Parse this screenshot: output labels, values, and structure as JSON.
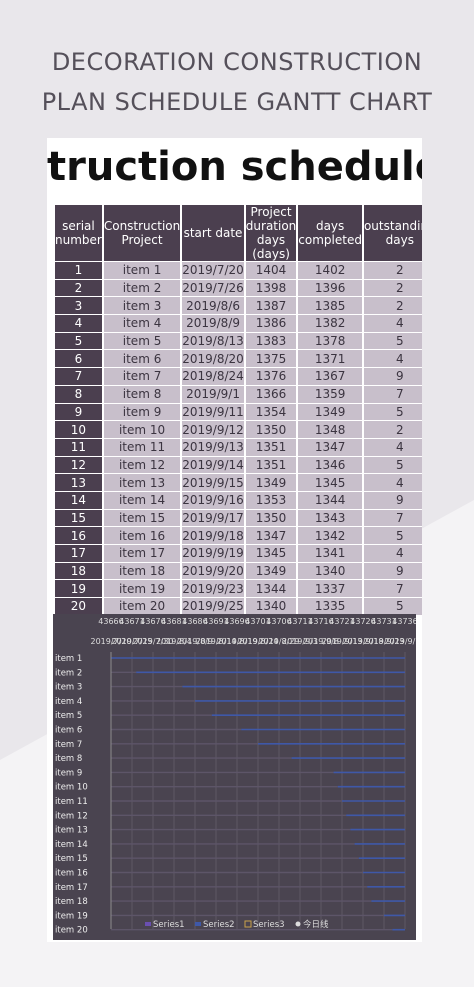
{
  "heading": {
    "lines": [
      "DECORATION CONSTRUCTION",
      "PLAN SCHEDULE GANTT CHART"
    ]
  },
  "banner": "truction schedule sche",
  "table": {
    "header": [
      "serial number",
      "Construction Project",
      "start date",
      "Project duration days (days)",
      "days completed",
      "outstanding days"
    ],
    "rows": [
      [
        "1",
        "item 1",
        "2019/7/20",
        "1404",
        "1402",
        "2"
      ],
      [
        "2",
        "item 2",
        "2019/7/26",
        "1398",
        "1396",
        "2"
      ],
      [
        "3",
        "item 3",
        "2019/8/6",
        "1387",
        "1385",
        "2"
      ],
      [
        "4",
        "item 4",
        "2019/8/9",
        "1386",
        "1382",
        "4"
      ],
      [
        "5",
        "item 5",
        "2019/8/13",
        "1383",
        "1378",
        "5"
      ],
      [
        "6",
        "item 6",
        "2019/8/20",
        "1375",
        "1371",
        "4"
      ],
      [
        "7",
        "item 7",
        "2019/8/24",
        "1376",
        "1367",
        "9"
      ],
      [
        "8",
        "item 8",
        "2019/9/1",
        "1366",
        "1359",
        "7"
      ],
      [
        "9",
        "item 9",
        "2019/9/11",
        "1354",
        "1349",
        "5"
      ],
      [
        "10",
        "item 10",
        "2019/9/12",
        "1350",
        "1348",
        "2"
      ],
      [
        "11",
        "item 11",
        "2019/9/13",
        "1351",
        "1347",
        "4"
      ],
      [
        "12",
        "item 12",
        "2019/9/14",
        "1351",
        "1346",
        "5"
      ],
      [
        "13",
        "item 13",
        "2019/9/15",
        "1349",
        "1345",
        "4"
      ],
      [
        "14",
        "item 14",
        "2019/9/16",
        "1353",
        "1344",
        "9"
      ],
      [
        "15",
        "item 15",
        "2019/9/17",
        "1350",
        "1343",
        "7"
      ],
      [
        "16",
        "item 16",
        "2019/9/18",
        "1347",
        "1342",
        "5"
      ],
      [
        "17",
        "item 17",
        "2019/9/19",
        "1345",
        "1341",
        "4"
      ],
      [
        "18",
        "item 18",
        "2019/9/20",
        "1349",
        "1340",
        "9"
      ],
      [
        "19",
        "item 19",
        "2019/9/23",
        "1344",
        "1337",
        "7"
      ],
      [
        "20",
        "item 20",
        "2019/9/25",
        "1340",
        "1335",
        "5"
      ]
    ]
  },
  "gantt": {
    "axis_top": [
      "43666",
      "43671",
      "43676",
      "43681",
      "43686",
      "43691",
      "43696",
      "43701",
      "43706",
      "43711",
      "43716",
      "43721",
      "43726",
      "43731",
      "43736"
    ],
    "axis_dates": [
      "2019/7/20",
      "2019/7/25",
      "2019/7/30",
      "2019/8/4",
      "2019/8/9",
      "2019/8/14",
      "2019/8/19",
      "2019/8/24",
      "2019/8/29",
      "2019/9/3",
      "2019/9/8",
      "2019/9/13",
      "2019/9/18",
      "2019/9/23",
      "2019/9/28"
    ],
    "legend": [
      "Series1",
      "Series2",
      "Series3",
      "今日线"
    ]
  }
}
